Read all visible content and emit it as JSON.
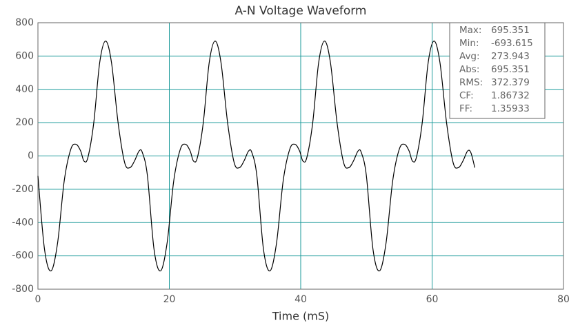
{
  "chart_data": {
    "type": "line",
    "title": "A-N Voltage Waveform",
    "x_label": "Time (mS)",
    "xlim": [
      0,
      80
    ],
    "xticks": [
      0,
      20,
      40,
      60,
      80
    ],
    "ylim": [
      -800,
      800
    ],
    "yticks": [
      -800,
      -600,
      -400,
      -200,
      0,
      200,
      400,
      600,
      800
    ],
    "grid": true,
    "grid_color": "#1a9a9a",
    "x": [
      0,
      1,
      2,
      3,
      4,
      5,
      5.8,
      6.5,
      7,
      7.6,
      8.5,
      9.4,
      10.3,
      11.2,
      12.2,
      13.2,
      14,
      14.7,
      15.4,
      15.9,
      16.67,
      17.67,
      18.67,
      19.67,
      20.67,
      21.67,
      22.47,
      23.17,
      23.67,
      24.27,
      25.17,
      26.07,
      26.97,
      27.87,
      28.87,
      29.87,
      30.67,
      31.37,
      32.07,
      32.57,
      33.33,
      34.33,
      35.33,
      36.33,
      37.33,
      38.33,
      39.13,
      39.83,
      40.33,
      40.93,
      41.83,
      42.73,
      43.63,
      44.53,
      45.53,
      46.53,
      47.33,
      48.03,
      48.73,
      49.23,
      50,
      51,
      52,
      53,
      54,
      55,
      55.8,
      56.5,
      57,
      57.6,
      58.5,
      59.4,
      60.3,
      61.2,
      62.2,
      63.2,
      64,
      64.7,
      65.4,
      65.9,
      66.5
    ],
    "series": [
      {
        "name": "A-N",
        "color": "#000000",
        "values": [
          -120,
          -560,
          -690,
          -520,
          -150,
          40,
          70,
          30,
          -30,
          -10,
          200,
          560,
          690,
          560,
          200,
          -40,
          -70,
          -30,
          30,
          20,
          -120,
          -560,
          -690,
          -520,
          -150,
          40,
          70,
          30,
          -30,
          -10,
          200,
          560,
          690,
          560,
          200,
          -40,
          -70,
          -30,
          30,
          20,
          -120,
          -560,
          -690,
          -520,
          -150,
          40,
          70,
          30,
          -30,
          -10,
          200,
          560,
          690,
          560,
          200,
          -40,
          -70,
          -30,
          30,
          20,
          -120,
          -560,
          -690,
          -520,
          -150,
          40,
          70,
          30,
          -30,
          -10,
          200,
          560,
          690,
          560,
          200,
          -40,
          -70,
          -30,
          30,
          20,
          -70
        ]
      }
    ],
    "stats": [
      {
        "label": "Max:",
        "value": "695.351"
      },
      {
        "label": "Min:",
        "value": "-693.615"
      },
      {
        "label": "Avg:",
        "value": "273.943"
      },
      {
        "label": "Abs:",
        "value": "695.351"
      },
      {
        "label": "RMS:",
        "value": "372.379"
      },
      {
        "label": "CF:",
        "value": "1.86732"
      },
      {
        "label": "FF:",
        "value": "1.35933"
      }
    ]
  }
}
